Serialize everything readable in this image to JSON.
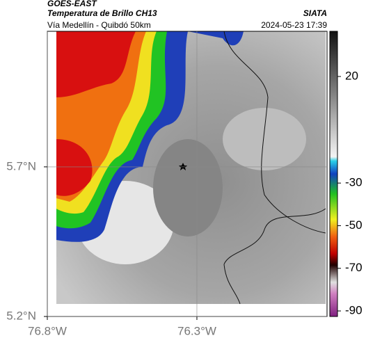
{
  "header": {
    "source": "GOES-EAST",
    "title": "Temperatura de Brillo CH13",
    "subtitle": "Vía Medellín - Quibdó 50km",
    "agency": "SIATA",
    "datetime": "2024-05-23 17:39"
  },
  "map": {
    "xlim": [
      -76.8,
      -75.865
    ],
    "ylim": [
      5.2,
      6.153
    ],
    "xticks": [
      {
        "value": -76.8,
        "label": "76.8°W"
      },
      {
        "value": -76.3,
        "label": "76.3°W"
      }
    ],
    "yticks": [
      {
        "value": 5.7,
        "label": "5.7°N"
      },
      {
        "value": 5.2,
        "label": "5.2°N"
      }
    ]
  },
  "colorbar": {
    "lim": [
      -92.6,
      41.2
    ],
    "ticks": [
      20,
      -30,
      -50,
      -70,
      -90
    ]
  }
}
